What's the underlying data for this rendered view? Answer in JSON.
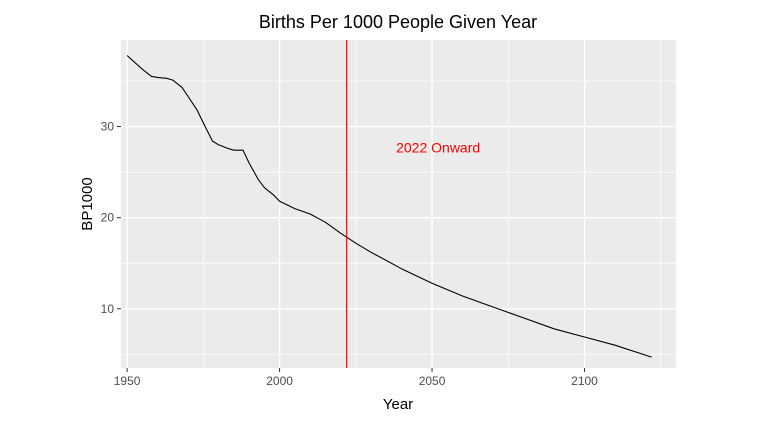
{
  "chart_data": {
    "type": "line",
    "title": "Births Per 1000 People Given Year",
    "xlabel": "Year",
    "ylabel": "BP1000",
    "xlim": [
      1948,
      2130
    ],
    "ylim": [
      3.5,
      39.5
    ],
    "x_ticks": [
      1950,
      2000,
      2050,
      2100
    ],
    "y_ticks": [
      10,
      20,
      30
    ],
    "x_tick_labels": [
      "1950",
      "2000",
      "2050",
      "2100"
    ],
    "y_tick_labels": [
      "10",
      "20",
      "30"
    ],
    "grid": true,
    "panel_color": "#ebebeb",
    "grid_color": "#ffffff",
    "line_color": "#000000",
    "series": [
      {
        "x": [
          1950,
          1955,
          1958,
          1960,
          1963,
          1965,
          1968,
          1970,
          1973,
          1975,
          1978,
          1980,
          1983,
          1985,
          1988,
          1990,
          1993,
          1995,
          1998,
          2000,
          2005,
          2010,
          2015,
          2020,
          2025,
          2030,
          2040,
          2050,
          2060,
          2070,
          2080,
          2090,
          2100,
          2110,
          2122
        ],
        "y": [
          37.8,
          36.3,
          35.5,
          35.4,
          35.3,
          35.1,
          34.3,
          33.3,
          31.8,
          30.4,
          28.4,
          28.0,
          27.6,
          27.4,
          27.4,
          26.0,
          24.2,
          23.3,
          22.5,
          21.8,
          21.0,
          20.4,
          19.5,
          18.3,
          17.2,
          16.2,
          14.4,
          12.8,
          11.4,
          10.2,
          9.0,
          7.8,
          6.9,
          6.0,
          4.7
        ]
      }
    ],
    "vline": {
      "x": 2022,
      "color": "#ff0000"
    },
    "annotations": [
      {
        "text": "2022 Onward",
        "x": 2052,
        "y": 27.7,
        "color": "#ff0000"
      }
    ]
  }
}
